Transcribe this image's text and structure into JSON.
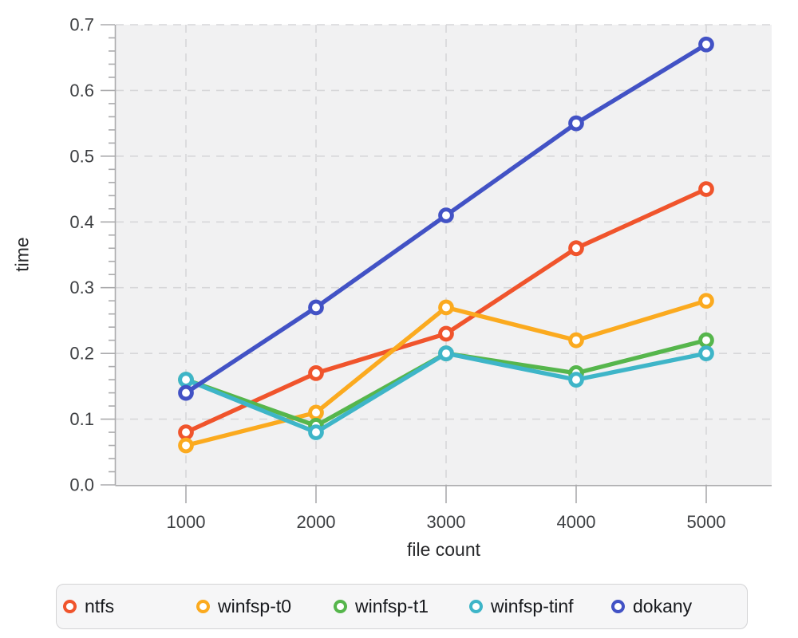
{
  "chart_data": {
    "type": "line",
    "title": "",
    "xlabel": "file count",
    "ylabel": "time",
    "x": [
      1000,
      2000,
      3000,
      4000,
      5000
    ],
    "xticks": [
      "1000",
      "2000",
      "3000",
      "4000",
      "5000"
    ],
    "yticks": [
      0.0,
      0.1,
      0.2,
      0.3,
      0.4,
      0.5,
      0.6,
      0.7
    ],
    "ylim": [
      0,
      0.7
    ],
    "grid": "dashed",
    "legend_position": "bottom",
    "marker": "open-circle",
    "series": [
      {
        "name": "ntfs",
        "color": "#f0542c",
        "values": [
          0.08,
          0.17,
          0.23,
          0.36,
          0.45
        ]
      },
      {
        "name": "winfsp-t0",
        "color": "#fbaa1f",
        "values": [
          0.06,
          0.11,
          0.27,
          0.22,
          0.28
        ]
      },
      {
        "name": "winfsp-t1",
        "color": "#56b64c",
        "values": [
          0.16,
          0.09,
          0.2,
          0.17,
          0.22
        ]
      },
      {
        "name": "winfsp-tinf",
        "color": "#3eb5c8",
        "values": [
          0.16,
          0.08,
          0.2,
          0.16,
          0.2
        ]
      },
      {
        "name": "dokany",
        "color": "#4252c5",
        "values": [
          0.14,
          0.27,
          0.41,
          0.55,
          0.67
        ]
      }
    ]
  }
}
